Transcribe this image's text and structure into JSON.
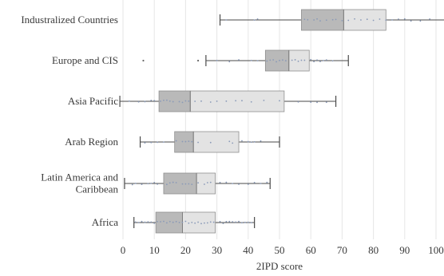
{
  "chart_data": {
    "type": "boxplot",
    "title": "",
    "xlabel": "2IPD score",
    "ylabel": "",
    "xlim": [
      0,
      100
    ],
    "xticks": [
      0,
      10,
      20,
      30,
      40,
      50,
      60,
      70,
      80,
      90,
      100
    ],
    "grid": true,
    "colors": {
      "lower_box": "#b9b9b9",
      "upper_box": "#e3e3e3",
      "points": "#8a9ab8",
      "whisker": "#4a4a4a"
    },
    "categories": [
      {
        "label_lines": [
          "Industralized Countries"
        ],
        "min": 31,
        "q1": 57,
        "median": 70.5,
        "q3": 84,
        "max": 104,
        "points": [
          33,
          42,
          43,
          58,
          59,
          61,
          62,
          63,
          65,
          67,
          68,
          70,
          72,
          74,
          76,
          78,
          80,
          82,
          84,
          86,
          88,
          90,
          92,
          95,
          98
        ],
        "outliers": []
      },
      {
        "label_lines": [
          "Europe and CIS"
        ],
        "min": 26.5,
        "q1": 45.5,
        "median": 53,
        "q3": 59.5,
        "max": 72,
        "points": [
          30,
          34,
          37,
          41,
          43,
          46,
          47,
          48,
          49,
          50,
          51,
          52,
          54,
          55,
          56,
          57,
          58,
          60,
          61,
          62,
          63,
          64,
          65,
          67
        ],
        "outliers": [
          6.5,
          24
        ]
      },
      {
        "label_lines": [
          "Asia Pacific"
        ],
        "min": -1,
        "q1": 11.5,
        "median": 21.5,
        "q3": 51.5,
        "max": 68,
        "points": [
          2,
          5,
          7,
          9,
          10,
          12,
          13,
          14,
          15,
          16,
          18,
          19,
          20,
          21,
          23,
          25,
          28,
          30,
          33,
          36,
          38,
          41,
          45,
          50,
          56,
          60,
          62,
          65
        ],
        "outliers": []
      },
      {
        "label_lines": [
          "Arab Region"
        ],
        "min": 5.5,
        "q1": 16.5,
        "median": 22.5,
        "q3": 37,
        "max": 50,
        "points": [
          7,
          9,
          11,
          13,
          17,
          19,
          20,
          21,
          22,
          24,
          28,
          34,
          35,
          38,
          40,
          41,
          42,
          44
        ],
        "outliers": []
      },
      {
        "label_lines": [
          "Latin America and",
          "Caribbean"
        ],
        "min": 0.5,
        "q1": 13,
        "median": 23.5,
        "q3": 29.5,
        "max": 47,
        "points": [
          3,
          4,
          6,
          8,
          9,
          10,
          11,
          14,
          15,
          16,
          17,
          19,
          20,
          21,
          22,
          24,
          26,
          27,
          28,
          31,
          33,
          35,
          37,
          40,
          42,
          44,
          46
        ],
        "outliers": []
      },
      {
        "label_lines": [
          "Africa"
        ],
        "min": 3.5,
        "q1": 10.5,
        "median": 19,
        "q3": 29.5,
        "max": 42,
        "points": [
          4,
          5,
          6,
          7,
          8,
          9,
          10,
          11,
          12,
          13,
          14,
          15,
          16,
          17,
          18,
          19,
          20,
          21,
          22,
          23,
          24,
          25,
          26,
          27,
          28,
          29,
          31,
          32,
          33,
          34,
          35,
          36,
          37,
          38,
          39,
          40,
          41
        ],
        "outliers": []
      }
    ]
  }
}
